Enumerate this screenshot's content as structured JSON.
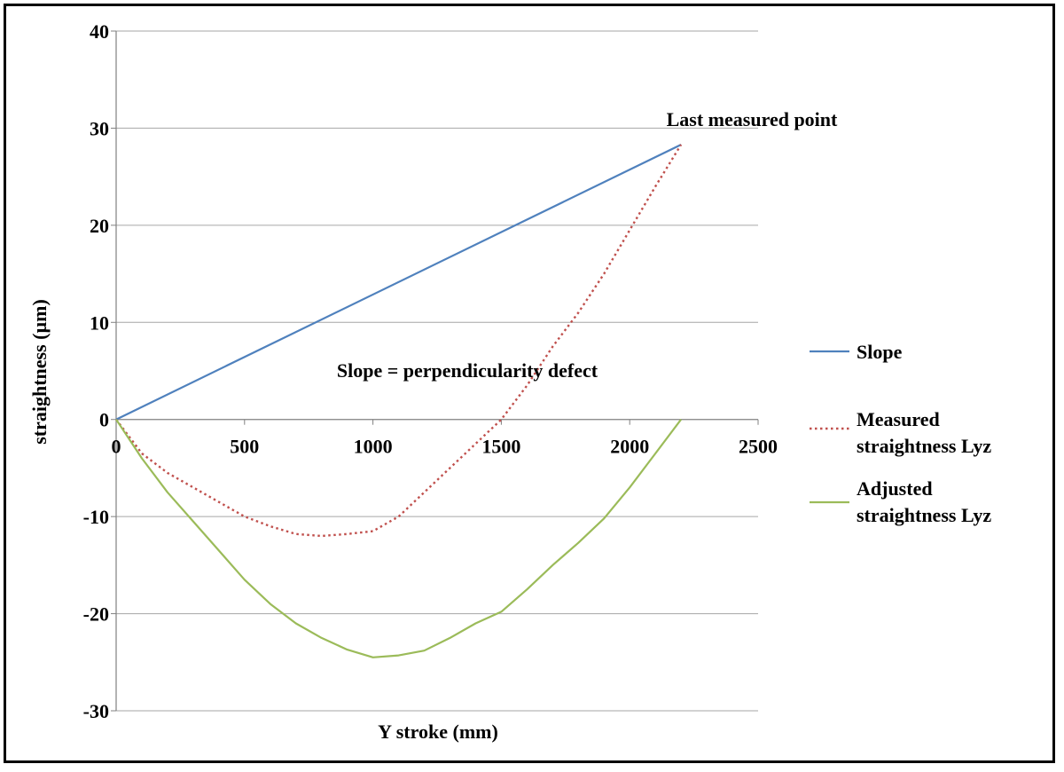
{
  "chart_data": {
    "type": "line",
    "title": "",
    "xlabel": "Y stroke (mm)",
    "ylabel": "straightness (µm)",
    "xlim": [
      0,
      2500
    ],
    "ylim": [
      -30,
      40
    ],
    "x_ticks": [
      0,
      500,
      1000,
      1500,
      2000,
      2500
    ],
    "y_ticks": [
      -30,
      -20,
      -10,
      0,
      10,
      20,
      30,
      40
    ],
    "grid": true,
    "legend_position": "right",
    "series": [
      {
        "name": "Slope",
        "color": "#4F81BD",
        "style": "solid",
        "x": [
          0,
          2200
        ],
        "y": [
          0,
          28.3
        ]
      },
      {
        "name": "Measured straightness Lyz",
        "color": "#C0504D",
        "style": "dotted",
        "x": [
          0,
          100,
          200,
          300,
          400,
          500,
          600,
          700,
          800,
          900,
          1000,
          1100,
          1200,
          1300,
          1400,
          1500,
          1600,
          1700,
          1800,
          1900,
          2000,
          2100,
          2200
        ],
        "y": [
          0,
          -3.5,
          -5.5,
          -7,
          -8.5,
          -10,
          -11,
          -11.8,
          -12,
          -11.8,
          -11.5,
          -10,
          -7.5,
          -5,
          -2.5,
          0,
          3.5,
          7.5,
          11,
          15,
          19.5,
          24,
          28.3
        ]
      },
      {
        "name": "Adjusted straightness Lyz",
        "color": "#9BBB59",
        "style": "solid",
        "x": [
          0,
          100,
          200,
          300,
          400,
          500,
          600,
          700,
          800,
          900,
          1000,
          1100,
          1200,
          1300,
          1400,
          1500,
          1600,
          1700,
          1800,
          1900,
          2000,
          2100,
          2200
        ],
        "y": [
          0,
          -4,
          -7.5,
          -10.5,
          -13.5,
          -16.5,
          -19,
          -21,
          -22.5,
          -23.7,
          -24.5,
          -24.3,
          -23.8,
          -22.5,
          -21,
          -19.8,
          -17.5,
          -15,
          -12.7,
          -10.2,
          -7,
          -3.5,
          0
        ]
      }
    ],
    "annotations": {
      "last_point": "Last measured point",
      "slope_note": "Slope = perpendicularity defect"
    }
  }
}
